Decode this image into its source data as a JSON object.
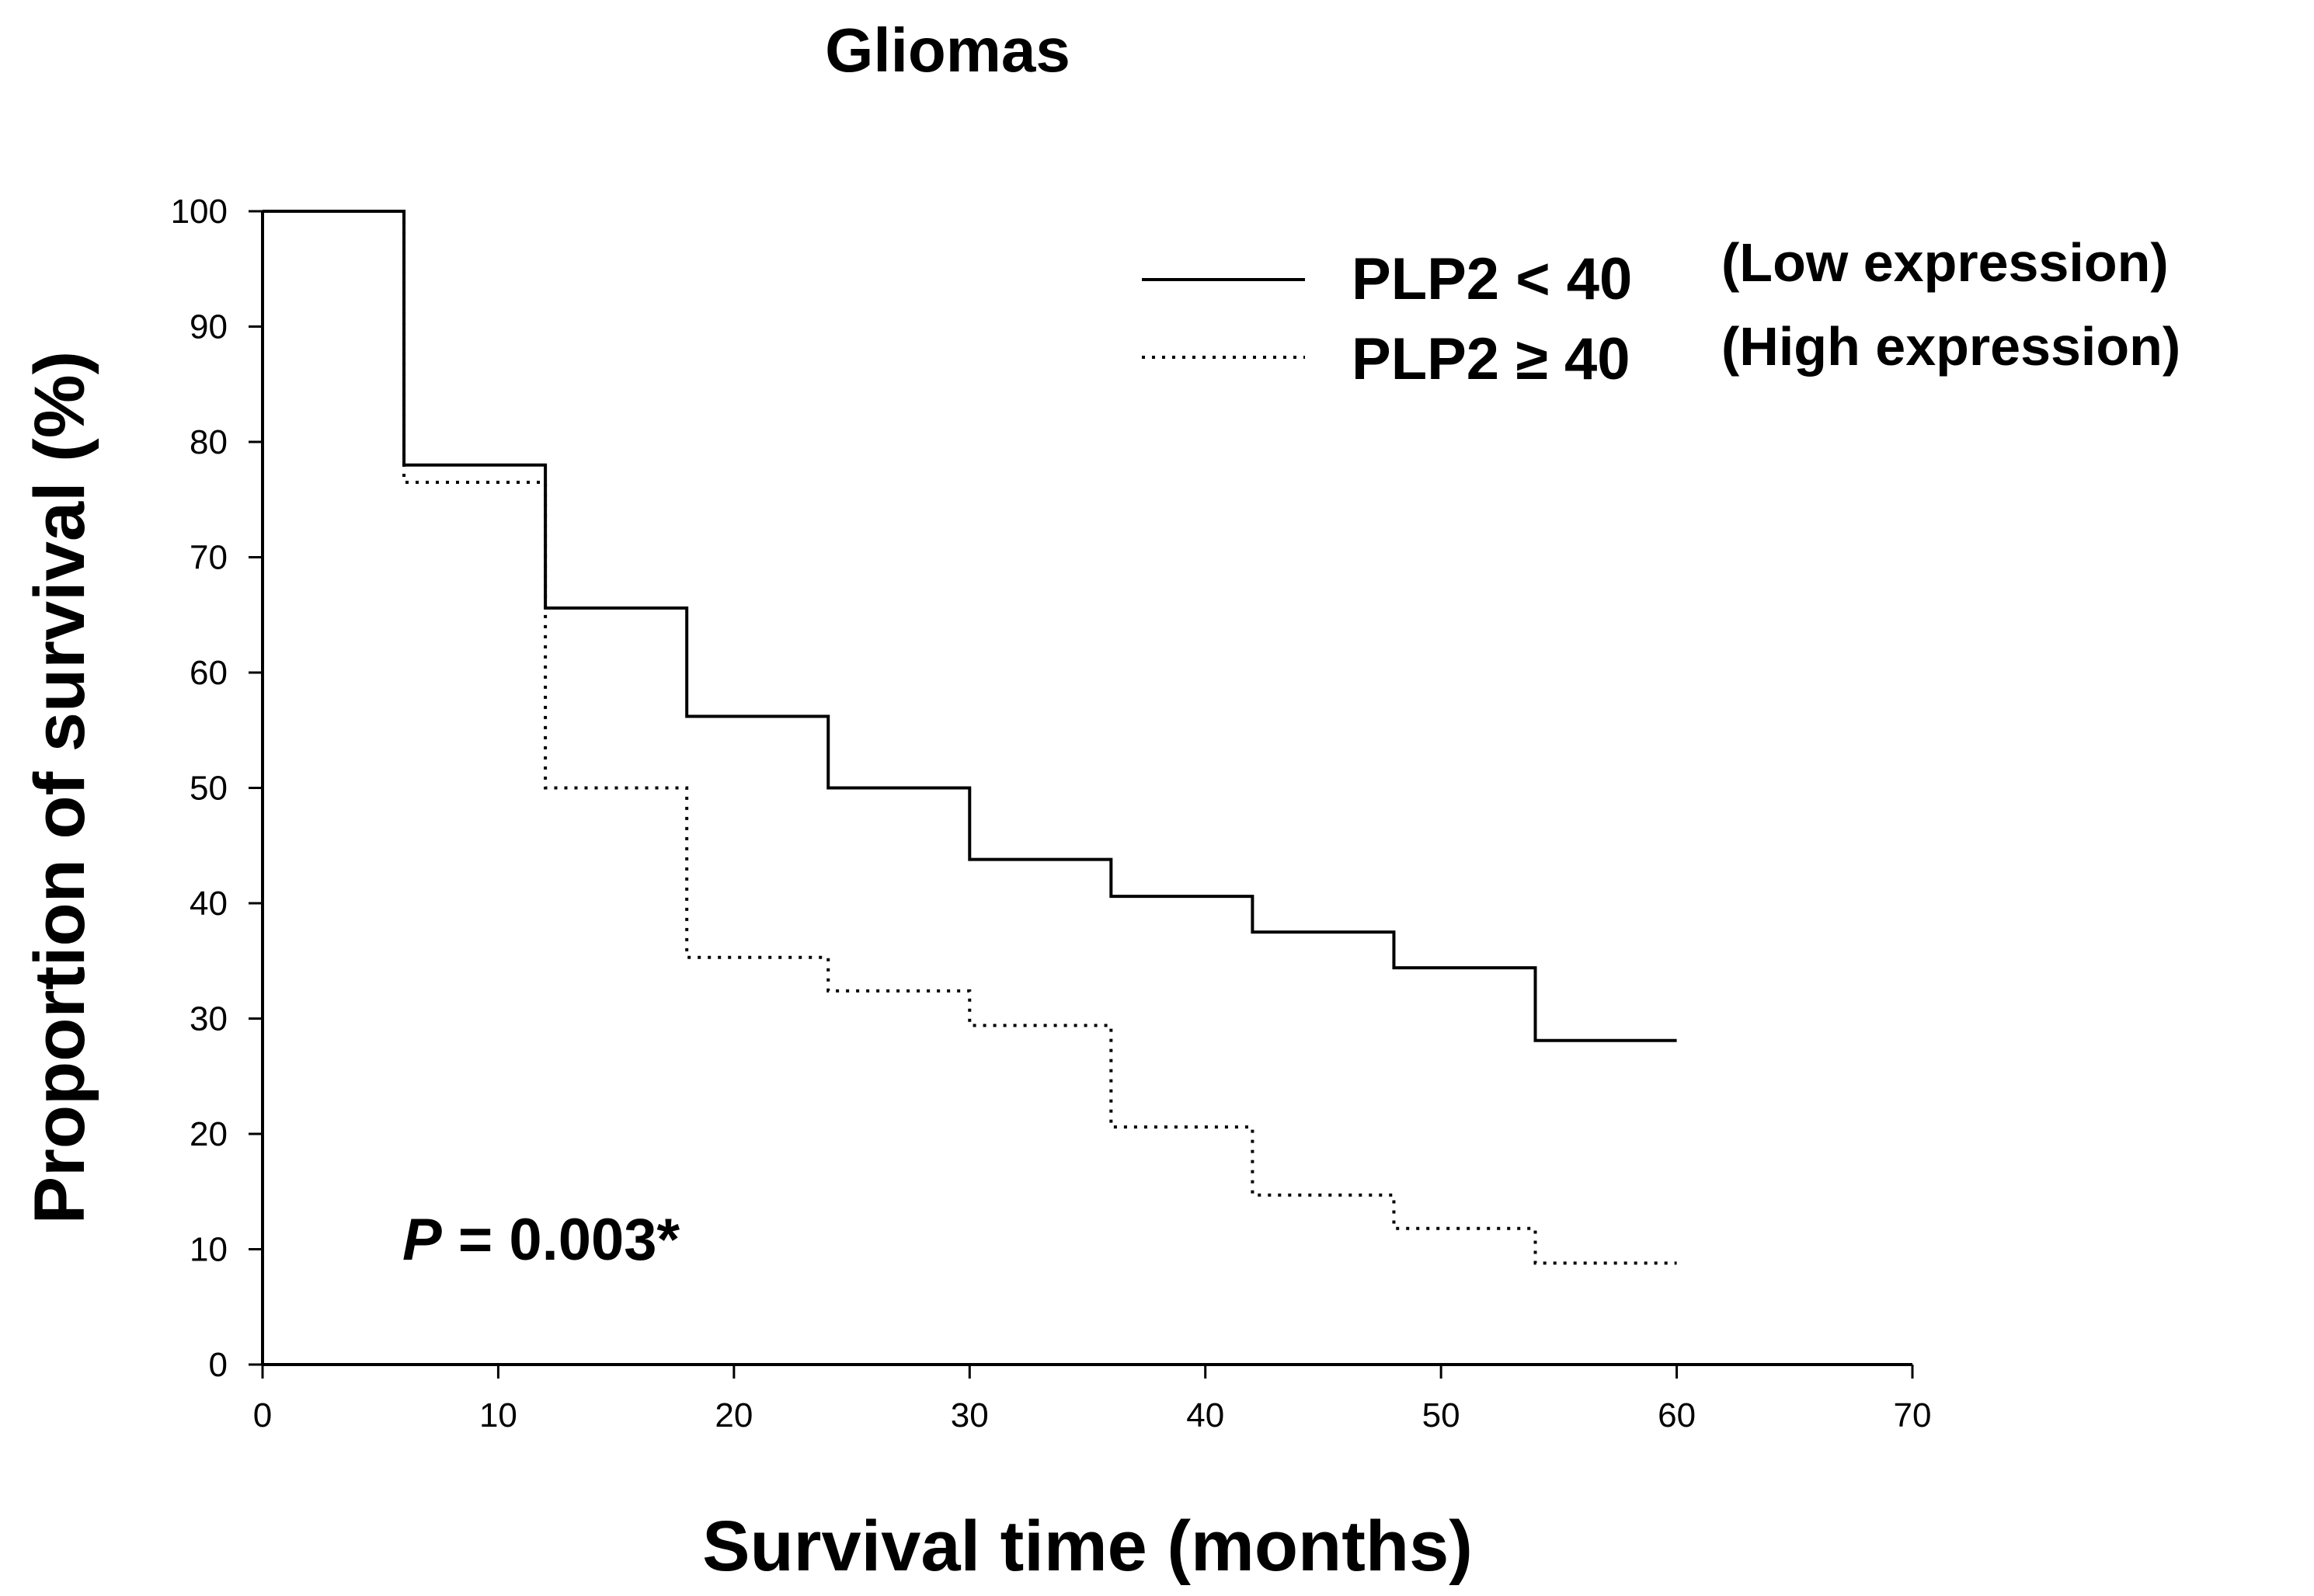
{
  "chart_data": {
    "type": "line",
    "subtype": "kaplan-meier-step",
    "title": "Gliomas",
    "xlabel": "Survival time (months)",
    "ylabel": "Proportion of survival (%)",
    "xlim": [
      0,
      70
    ],
    "ylim": [
      0,
      100
    ],
    "xticks": [
      0,
      10,
      20,
      30,
      40,
      50,
      60,
      70
    ],
    "yticks": [
      0,
      10,
      20,
      30,
      40,
      50,
      60,
      70,
      80,
      90,
      100
    ],
    "grid": false,
    "legend_position": "top-right",
    "series": [
      {
        "name": "PLP2 < 40",
        "legend_main": "PLP2 < 40",
        "legend_desc": "(Low expression)",
        "line_style": "solid",
        "color": "#000000",
        "x": [
          0,
          6,
          12,
          18,
          24,
          30,
          36,
          42,
          48,
          54,
          60
        ],
        "y": [
          100,
          78,
          65.6,
          56.2,
          50,
          43.8,
          40.6,
          37.5,
          34.4,
          28.1,
          28.1
        ]
      },
      {
        "name": "PLP2 ≥ 40",
        "legend_main": "PLP2 ≥ 40",
        "legend_desc": "(High expression)",
        "line_style": "dotted",
        "color": "#000000",
        "x": [
          0,
          6,
          12,
          18,
          24,
          30,
          36,
          42,
          48,
          54,
          60
        ],
        "y": [
          100,
          76.5,
          50,
          35.3,
          32.4,
          29.4,
          20.6,
          14.7,
          11.8,
          8.8,
          8.8
        ]
      }
    ],
    "annotations": [
      {
        "label": "P",
        "text": " = 0.003*"
      }
    ]
  }
}
